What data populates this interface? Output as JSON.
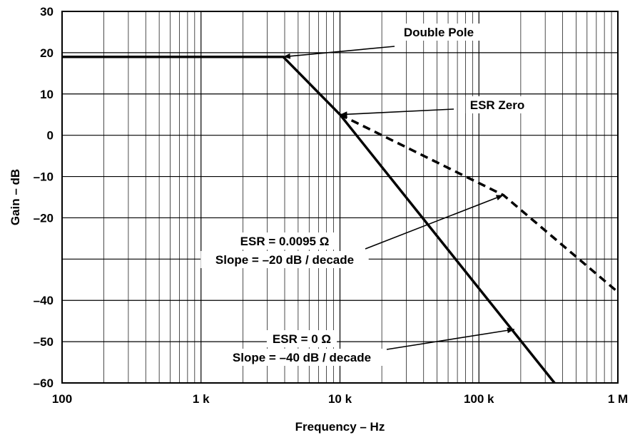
{
  "chart_data": {
    "type": "line",
    "xlabel": "Frequency – Hz",
    "ylabel": "Gain – dB",
    "x_scale": "log",
    "xlim": [
      100,
      1000000
    ],
    "ylim": [
      -60,
      30
    ],
    "grid": true,
    "x_ticks": [
      {
        "value": 100,
        "label": "100"
      },
      {
        "value": 1000,
        "label": "1 k"
      },
      {
        "value": 10000,
        "label": "10 k"
      },
      {
        "value": 100000,
        "label": "100 k"
      },
      {
        "value": 1000000,
        "label": "1 M"
      }
    ],
    "y_ticks": [
      {
        "value": 30,
        "label": "30"
      },
      {
        "value": 20,
        "label": "20"
      },
      {
        "value": 10,
        "label": "10"
      },
      {
        "value": 0,
        "label": "0"
      },
      {
        "value": -10,
        "label": "–10"
      },
      {
        "value": -20,
        "label": "–20"
      },
      {
        "value": -40,
        "label": "–40"
      },
      {
        "value": -50,
        "label": "–50"
      },
      {
        "value": -60,
        "label": "–60"
      }
    ],
    "series": [
      {
        "style": "solid",
        "color": "#000000",
        "points": [
          [
            100,
            19
          ],
          [
            3900,
            19
          ],
          [
            10000,
            5
          ],
          [
            350000,
            -60
          ]
        ]
      },
      {
        "style": "dashed",
        "color": "#000000",
        "points": [
          [
            10000,
            5
          ],
          [
            150000,
            -14.5
          ],
          [
            1000000,
            -38
          ]
        ]
      }
    ],
    "annotations": [
      {
        "lines": [
          "Double Pole"
        ],
        "target": [
          3900,
          19
        ]
      },
      {
        "lines": [
          "ESR Zero"
        ],
        "target": [
          10000,
          5
        ]
      },
      {
        "lines": [
          "ESR = 0.0095 Ω",
          "Slope = –20 dB / decade"
        ],
        "target": [
          150000,
          -14.5
        ]
      },
      {
        "lines": [
          "ESR = 0 Ω",
          "Slope = –40 dB / decade"
        ],
        "target": [
          180000,
          -47
        ]
      }
    ]
  }
}
